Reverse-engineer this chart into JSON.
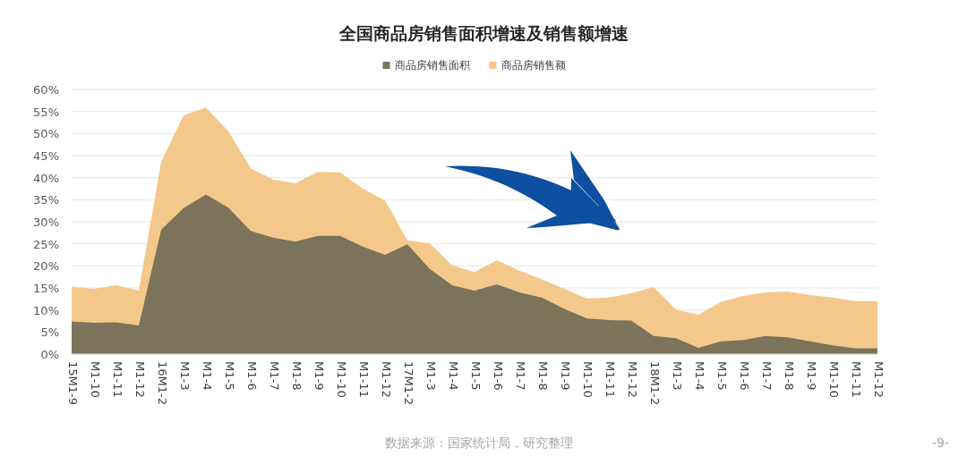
{
  "chart_data": {
    "type": "area",
    "title": "全国商品房销售面积增速及销售额增速",
    "categories": [
      "15M1-9",
      "M1-10",
      "M1-11",
      "M1-12",
      "16M1-2",
      "M1-3",
      "M1-4",
      "M1-5",
      "M1-6",
      "M1-7",
      "M1-8",
      "M1-9",
      "M1-10",
      "M1-11",
      "M1-12",
      "17M1-2",
      "M1-3",
      "M1-4",
      "M1-5",
      "M1-6",
      "M1-7",
      "M1-8",
      "M1-9",
      "M1-10",
      "M1-11",
      "M1-12",
      "18M1-2",
      "M1-3",
      "M1-4",
      "M1-5",
      "M1-6",
      "M1-7",
      "M1-8",
      "M1-9",
      "M1-10",
      "M1-11",
      "M1-12"
    ],
    "series": [
      {
        "name": "商品房销售额",
        "color": "#f4c88a",
        "values": [
          15.3,
          14.8,
          15.6,
          14.4,
          43.6,
          54.1,
          55.9,
          50.5,
          42.1,
          39.6,
          38.7,
          41.3,
          41.2,
          37.5,
          34.8,
          25.8,
          25.1,
          20.1,
          18.6,
          21.3,
          18.9,
          17.0,
          14.8,
          12.6,
          12.8,
          13.8,
          15.2,
          10.1,
          8.9,
          11.8,
          13.2,
          14.0,
          14.2,
          13.4,
          12.8,
          12.0,
          12.0
        ]
      },
      {
        "name": "商品房销售面积",
        "color": "#7b735a",
        "values": [
          7.4,
          7.1,
          7.2,
          6.5,
          28.2,
          33.1,
          36.2,
          33.2,
          27.9,
          26.4,
          25.5,
          26.8,
          26.8,
          24.4,
          22.5,
          24.9,
          19.3,
          15.6,
          14.4,
          15.8,
          14.0,
          12.8,
          10.3,
          8.1,
          7.7,
          7.6,
          4.1,
          3.6,
          1.4,
          2.9,
          3.2,
          4.1,
          3.8,
          2.9,
          2.0,
          1.3,
          1.3
        ]
      }
    ],
    "ylim": [
      0,
      60
    ],
    "yticks": [
      {
        "value": 0,
        "label": "0%"
      },
      {
        "value": 5,
        "label": "5%"
      },
      {
        "value": 10,
        "label": "10%"
      },
      {
        "value": 15,
        "label": "15%"
      },
      {
        "value": 20,
        "label": "20%"
      },
      {
        "value": 25,
        "label": "25%"
      },
      {
        "value": 30,
        "label": "30%"
      },
      {
        "value": 35,
        "label": "35%"
      },
      {
        "value": 40,
        "label": "40%"
      },
      {
        "value": 45,
        "label": "45%"
      },
      {
        "value": 50,
        "label": "50%"
      },
      {
        "value": 55,
        "label": "55%"
      },
      {
        "value": 60,
        "label": "60%"
      }
    ],
    "grid": "y",
    "legend": "top",
    "annotations": [
      "数据来源：国家统计局，研究整理",
      "-9-"
    ]
  }
}
